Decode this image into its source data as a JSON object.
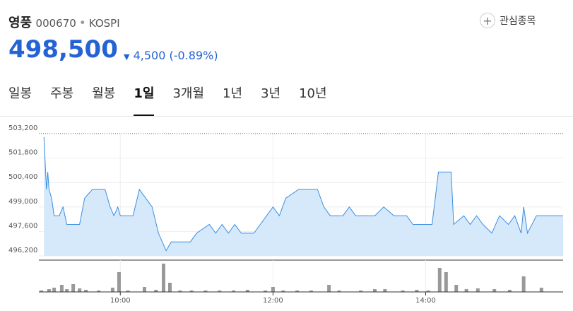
{
  "header": {
    "name": "영풍",
    "code": "000670",
    "market": "KOSPI",
    "watch": "관심종목",
    "price": "498,500",
    "change": "4,500",
    "change_pct": "(-0.89%)"
  },
  "tabs": [
    "일봉",
    "주봉",
    "월봉",
    "1일",
    "3개월",
    "1년",
    "3년",
    "10년"
  ],
  "active_tab": 3,
  "chart_data": [
    {
      "type": "line",
      "color": "#3a8ee0",
      "fill": "#d6e9fb",
      "x": [
        "09:00",
        "09:02",
        "09:03",
        "09:04",
        "09:06",
        "09:08",
        "09:12",
        "09:15",
        "09:18",
        "09:28",
        "09:32",
        "09:38",
        "09:48",
        "09:52",
        "09:55",
        "09:58",
        "10:00",
        "10:10",
        "10:15",
        "10:20",
        "10:25",
        "10:30",
        "10:33",
        "10:36",
        "10:40",
        "10:55",
        "11:00",
        "11:10",
        "11:15",
        "11:20",
        "11:25",
        "11:30",
        "11:35",
        "11:45",
        "11:50",
        "11:55",
        "12:00",
        "12:05",
        "12:10",
        "12:20",
        "12:35",
        "12:40",
        "12:45",
        "12:55",
        "13:00",
        "13:05",
        "13:20",
        "13:27",
        "13:35",
        "13:45",
        "13:50",
        "14:05",
        "14:10",
        "14:20",
        "14:22",
        "14:30",
        "14:35",
        "14:40",
        "14:45",
        "14:52",
        "14:58",
        "15:05",
        "15:10",
        "15:15",
        "15:17",
        "15:20",
        "15:27",
        "15:48"
      ],
      "values": [
        503000,
        500000,
        501000,
        500000,
        499500,
        498500,
        498500,
        499000,
        498000,
        498000,
        499500,
        500000,
        500000,
        499000,
        498500,
        499000,
        498500,
        498500,
        500000,
        499500,
        499000,
        497500,
        497000,
        496500,
        497000,
        497000,
        497500,
        498000,
        497500,
        498000,
        497500,
        498000,
        497500,
        497500,
        498000,
        498500,
        499000,
        498500,
        499500,
        500000,
        500000,
        499000,
        498500,
        498500,
        499000,
        498500,
        498500,
        499000,
        498500,
        498500,
        498000,
        498000,
        501000,
        501000,
        498000,
        498500,
        498000,
        498500,
        498000,
        497500,
        498500,
        498000,
        498500,
        497500,
        499000,
        497500,
        498500,
        498500
      ],
      "xlim": [
        "08:56",
        "15:48"
      ],
      "ylim": [
        496200,
        503200
      ],
      "yticks": [
        {
          "value": 496200,
          "label": "496,200"
        },
        {
          "value": 497600,
          "label": "497,600"
        },
        {
          "value": 499000,
          "label": "499,000"
        },
        {
          "value": 500400,
          "label": "500,400"
        },
        {
          "value": 501800,
          "label": "501,800"
        },
        {
          "value": 503200,
          "label": "503,200"
        }
      ],
      "xticks": [
        "10:00",
        "12:00",
        "14:00"
      ],
      "grid": true
    },
    {
      "type": "bar",
      "color": "#999999",
      "x": [
        "08:58",
        "09:04",
        "09:08",
        "09:14",
        "09:18",
        "09:23",
        "09:28",
        "09:33",
        "09:43",
        "09:54",
        "09:59",
        "10:06",
        "10:19",
        "10:28",
        "10:34",
        "10:39",
        "10:47",
        "10:56",
        "11:07",
        "11:18",
        "11:29",
        "11:40",
        "11:54",
        "12:00",
        "12:08",
        "12:19",
        "12:30",
        "12:44",
        "12:52",
        "13:09",
        "13:20",
        "13:28",
        "13:42",
        "13:53",
        "14:02",
        "14:11",
        "14:16",
        "14:24",
        "14:32",
        "14:41",
        "14:54",
        "15:06",
        "15:17",
        "15:31"
      ],
      "values": [
        2,
        4,
        6,
        10,
        4,
        11,
        5,
        3,
        2,
        6,
        28,
        2,
        7,
        3,
        40,
        13,
        2,
        2,
        2,
        2,
        2,
        3,
        2,
        7,
        2,
        2,
        2,
        10,
        2,
        2,
        4,
        4,
        2,
        3,
        2,
        34,
        28,
        10,
        4,
        5,
        4,
        3,
        22,
        6
      ],
      "xlim": [
        "08:56",
        "15:48"
      ],
      "ylim": [
        0,
        45
      ],
      "xticks": [
        "10:00",
        "12:00",
        "14:00"
      ]
    }
  ]
}
